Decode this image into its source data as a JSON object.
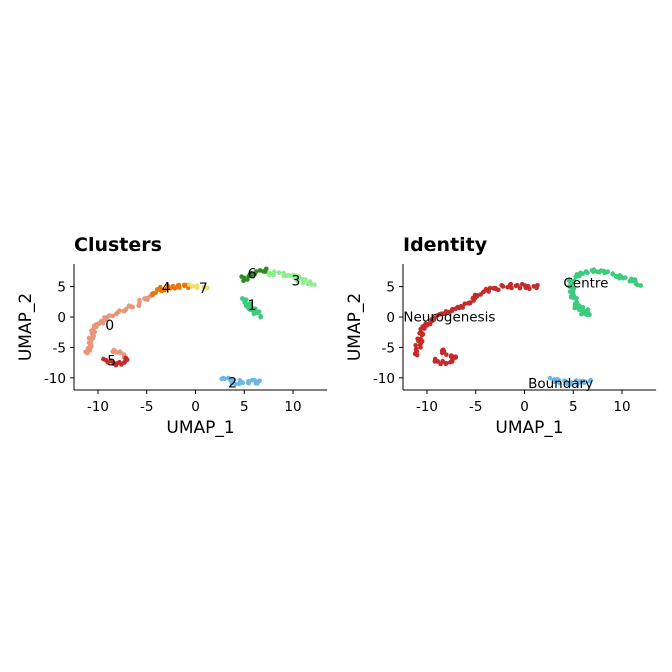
{
  "chart_data": [
    {
      "type": "scatter",
      "title": "Clusters",
      "xlabel": "UMAP_1",
      "ylabel": "UMAP_2",
      "xlim": [
        -12.5,
        13.5
      ],
      "ylim": [
        -12,
        9
      ],
      "xticks": [
        -10,
        -5,
        0,
        5,
        10
      ],
      "yticks": [
        5,
        0,
        -5,
        -10
      ],
      "xtick_labels": [
        "-10",
        "-5",
        "0",
        "5",
        "10"
      ],
      "ytick_labels": [
        "5",
        "0",
        "-5",
        "-10"
      ],
      "groups": [
        {
          "name": "0",
          "color": "#E9967A",
          "label_pos": [
            -8.8,
            -1.5
          ],
          "segments": [
            {
              "points": [
                [
                  -11.0,
                  -6.0
                ],
                [
                  -10.8,
                  -4.0
                ],
                [
                  -10.4,
                  -1.6
                ],
                [
                  -9.4,
                  -0.3
                ],
                [
                  -8.0,
                  0.8
                ],
                [
                  -6.5,
                  1.7
                ],
                [
                  -5.2,
                  2.8
                ],
                [
                  -4.6,
                  3.8
                ]
              ],
              "n": 55
            },
            {
              "points": [
                [
                  -8.6,
                  -5.5
                ],
                [
                  -7.2,
                  -6.4
                ]
              ],
              "n": 10
            }
          ]
        },
        {
          "name": "1",
          "color": "#3CCB7F",
          "label_pos": [
            5.8,
            1.8
          ],
          "segments": [
            {
              "points": [
                [
                  5.0,
                  3.0
                ],
                [
                  5.4,
                  1.8
                ],
                [
                  6.0,
                  0.8
                ],
                [
                  6.6,
                  0.2
                ]
              ],
              "n": 22
            },
            {
              "points": [
                [
                  5.2,
                  1.8
                ],
                [
                  6.3,
                  1.2
                ]
              ],
              "n": 10
            }
          ]
        },
        {
          "name": "2",
          "color": "#6CB6E8",
          "label_pos": [
            3.8,
            -10.9
          ],
          "segments": [
            {
              "points": [
                [
                  2.8,
                  -10.0
                ],
                [
                  3.4,
                  -10.5
                ],
                [
                  5.0,
                  -10.8
                ],
                [
                  6.7,
                  -10.6
                ]
              ],
              "n": 25
            }
          ]
        },
        {
          "name": "3",
          "color": "#90EE90",
          "label_pos": [
            10.3,
            5.8
          ],
          "segments": [
            {
              "points": [
                [
                  7.3,
                  7.4
                ],
                [
                  8.8,
                  7.0
                ],
                [
                  10.3,
                  6.4
                ],
                [
                  12.0,
                  5.3
                ]
              ],
              "n": 28
            }
          ]
        },
        {
          "name": "4",
          "color": "#E8770A",
          "label_pos": [
            -3.0,
            4.7
          ],
          "segments": [
            {
              "points": [
                [
                  -4.6,
                  3.8
                ],
                [
                  -3.6,
                  4.6
                ],
                [
                  -2.0,
                  5.1
                ],
                [
                  -0.8,
                  5.1
                ]
              ],
              "n": 22
            }
          ]
        },
        {
          "name": "5",
          "color": "#C42B2B",
          "label_pos": [
            -8.6,
            -7.3
          ],
          "segments": [
            {
              "points": [
                [
                  -9.2,
                  -7.0
                ],
                [
                  -8.4,
                  -7.6
                ],
                [
                  -7.5,
                  -7.5
                ],
                [
                  -7.2,
                  -6.8
                ]
              ],
              "n": 14
            }
          ]
        },
        {
          "name": "6",
          "color": "#2E8B22",
          "label_pos": [
            5.8,
            7.0
          ],
          "segments": [
            {
              "points": [
                [
                  4.8,
                  6.2
                ],
                [
                  5.8,
                  7.2
                ],
                [
                  7.2,
                  7.6
                ]
              ],
              "n": 16
            }
          ]
        },
        {
          "name": "7",
          "color": "#F0E060",
          "label_pos": [
            0.8,
            4.6
          ],
          "segments": [
            {
              "points": [
                [
                  -0.8,
                  5.0
                ],
                [
                  0.3,
                  5.0
                ],
                [
                  1.2,
                  4.9
                ]
              ],
              "n": 6
            }
          ]
        }
      ]
    },
    {
      "type": "scatter",
      "title": "Identity",
      "xlabel": "UMAP_1",
      "ylabel": "UMAP_2",
      "xlim": [
        -12.5,
        13.5
      ],
      "ylim": [
        -12,
        9
      ],
      "xticks": [
        -10,
        -5,
        0,
        5,
        10
      ],
      "yticks": [
        5,
        0,
        -5,
        -10
      ],
      "xtick_labels": [
        "-10",
        "-5",
        "0",
        "5",
        "10"
      ],
      "ytick_labels": [
        "5",
        "0",
        "-5",
        "-10"
      ],
      "groups": [
        {
          "name": "Neurogenesis",
          "color": "#C42B2B",
          "label_pos": [
            -7.7,
            -0.1
          ],
          "segments": [
            {
              "points": [
                [
                  -11.0,
                  -6.0
                ],
                [
                  -10.8,
                  -4.0
                ],
                [
                  -10.4,
                  -1.6
                ],
                [
                  -9.4,
                  -0.3
                ],
                [
                  -8.0,
                  0.8
                ],
                [
                  -6.5,
                  1.7
                ],
                [
                  -5.2,
                  2.8
                ],
                [
                  -4.6,
                  3.8
                ],
                [
                  -3.6,
                  4.6
                ],
                [
                  -2.0,
                  5.1
                ],
                [
                  -0.8,
                  5.1
                ],
                [
                  0.3,
                  5.0
                ],
                [
                  1.2,
                  4.9
                ]
              ],
              "n": 85
            },
            {
              "points": [
                [
                  -9.2,
                  -7.0
                ],
                [
                  -8.4,
                  -7.6
                ],
                [
                  -7.5,
                  -7.5
                ],
                [
                  -7.2,
                  -6.8
                ]
              ],
              "n": 14
            },
            {
              "points": [
                [
                  -8.6,
                  -5.5
                ],
                [
                  -7.2,
                  -6.4
                ]
              ],
              "n": 8
            }
          ]
        },
        {
          "name": "Centre",
          "color": "#3CCB7F",
          "label_pos": [
            6.3,
            5.5
          ],
          "segments": [
            {
              "points": [
                [
                  6.6,
                  0.2
                ],
                [
                  6.0,
                  0.8
                ],
                [
                  5.4,
                  1.8
                ],
                [
                  5.0,
                  3.0
                ],
                [
                  4.8,
                  5.0
                ],
                [
                  4.8,
                  6.2
                ],
                [
                  5.8,
                  7.2
                ],
                [
                  7.2,
                  7.6
                ],
                [
                  8.8,
                  7.0
                ],
                [
                  10.3,
                  6.4
                ],
                [
                  12.0,
                  5.3
                ]
              ],
              "n": 70
            },
            {
              "points": [
                [
                  5.2,
                  1.8
                ],
                [
                  6.3,
                  1.2
                ]
              ],
              "n": 10
            }
          ]
        },
        {
          "name": "Boundary",
          "color": "#6CB6E8",
          "label_pos": [
            3.7,
            -11.0
          ],
          "segments": [
            {
              "points": [
                [
                  2.8,
                  -10.0
                ],
                [
                  3.4,
                  -10.5
                ],
                [
                  5.0,
                  -10.8
                ],
                [
                  6.7,
                  -10.6
                ]
              ],
              "n": 25
            }
          ]
        }
      ]
    }
  ]
}
